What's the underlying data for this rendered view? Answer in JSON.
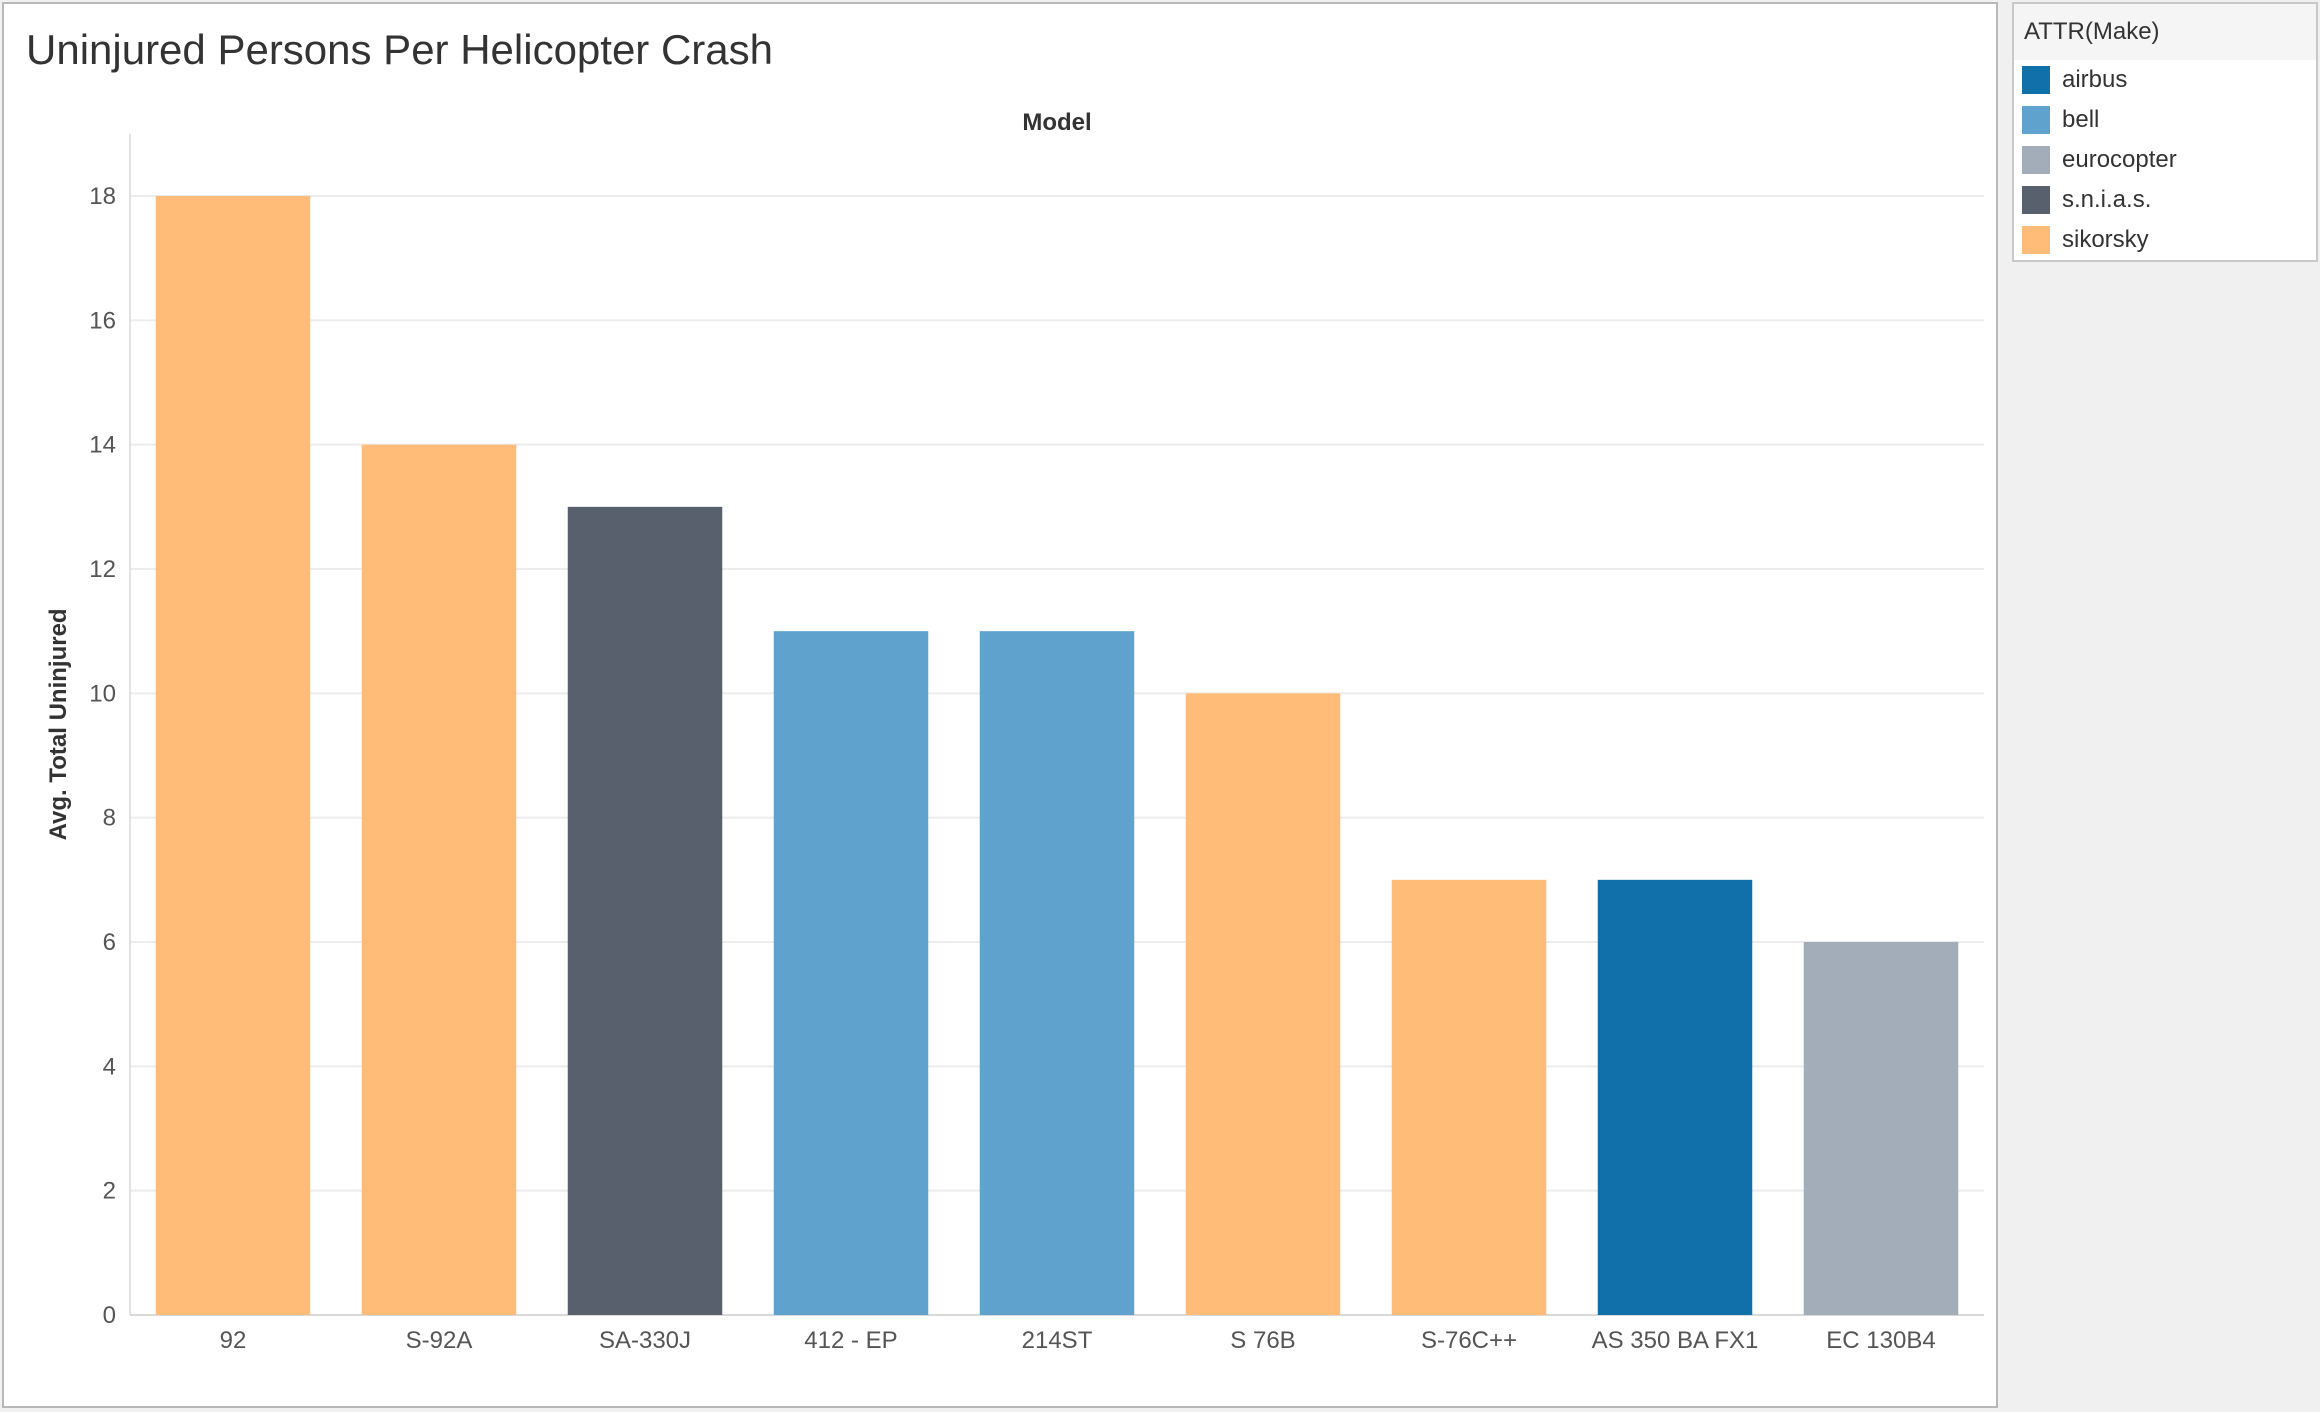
{
  "chart_data": {
    "type": "bar",
    "title": "Uninjured Persons Per Helicopter Crash",
    "header_label": "Model",
    "xlabel": "",
    "ylabel": "Avg. Total Uninjured",
    "ylim": [
      0,
      19
    ],
    "yticks": [
      0,
      2,
      4,
      6,
      8,
      10,
      12,
      14,
      16,
      18
    ],
    "grid": true,
    "legend_position": "right",
    "categories": [
      "92",
      "S-92A",
      "SA-330J",
      "412 - EP",
      "214ST",
      "S 76B",
      "S-76C++",
      "AS 350 BA FX1",
      "EC 130B4"
    ],
    "values": [
      18,
      14,
      13,
      11,
      11,
      10,
      7,
      7,
      6
    ],
    "makes": [
      "sikorsky",
      "sikorsky",
      "s.n.i.a.s.",
      "bell",
      "bell",
      "sikorsky",
      "sikorsky",
      "airbus",
      "eurocopter"
    ]
  },
  "legend": {
    "title": "ATTR(Make)",
    "items": [
      {
        "label": "airbus",
        "color": "#1170aa"
      },
      {
        "label": "bell",
        "color": "#5fa2ce"
      },
      {
        "label": "eurocopter",
        "color": "#a3acb9"
      },
      {
        "label": "s.n.i.a.s.",
        "color": "#57606c"
      },
      {
        "label": "sikorsky",
        "color": "#ffbc79"
      }
    ]
  }
}
